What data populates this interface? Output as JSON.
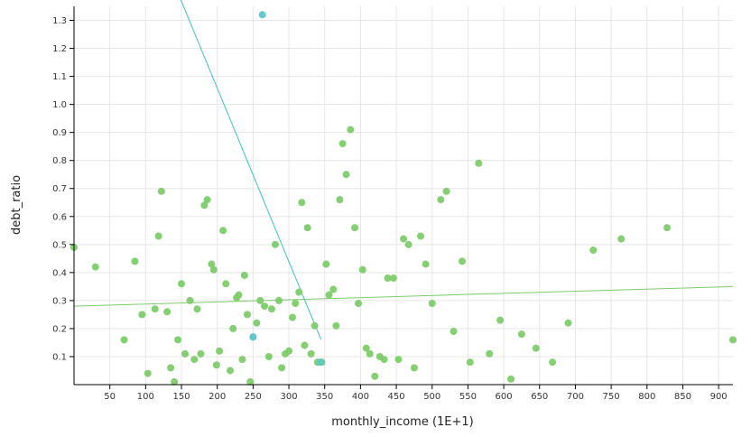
{
  "chart_data": {
    "type": "scatter",
    "xlabel": "monthly_income (1E+1)",
    "ylabel": "debt_ratio",
    "xlim": [
      0,
      920
    ],
    "ylim": [
      0,
      1.35
    ],
    "x_ticks": [
      50,
      100,
      150,
      200,
      250,
      300,
      350,
      400,
      450,
      500,
      550,
      600,
      650,
      700,
      750,
      800,
      850,
      900
    ],
    "y_ticks": [
      0.1,
      0.2,
      0.3,
      0.4,
      0.5,
      0.6,
      0.7,
      0.8,
      0.9,
      1.0,
      1.1,
      1.2,
      1.3
    ],
    "y_tick_labels": [
      "0.1",
      "0.2",
      "0.3",
      "0.4",
      "0.5",
      "0.6",
      "0.7",
      "0.8",
      "0.9",
      "1.0",
      "1.1",
      "1.2",
      "1.3"
    ],
    "grid": true,
    "colors": {
      "green": "#7ccc6a",
      "teal": "#5ec8cc",
      "green_line": "#7ccc6a",
      "teal_line": "#3ec1c8"
    },
    "series": [
      {
        "color": "green",
        "points": [
          [
            0,
            0.49
          ],
          [
            30,
            0.42
          ],
          [
            70,
            0.16
          ],
          [
            85,
            0.44
          ],
          [
            95,
            0.25
          ],
          [
            103,
            0.04
          ],
          [
            113,
            0.27
          ],
          [
            118,
            0.53
          ],
          [
            122,
            0.69
          ],
          [
            130,
            0.26
          ],
          [
            135,
            0.06
          ],
          [
            140,
            0.01
          ],
          [
            145,
            0.16
          ],
          [
            150,
            0.36
          ],
          [
            155,
            0.11
          ],
          [
            162,
            0.3
          ],
          [
            168,
            0.09
          ],
          [
            172,
            0.27
          ],
          [
            177,
            0.11
          ],
          [
            182,
            0.64
          ],
          [
            186,
            0.66
          ],
          [
            192,
            0.43
          ],
          [
            195,
            0.41
          ],
          [
            199,
            0.07
          ],
          [
            203,
            0.12
          ],
          [
            208,
            0.55
          ],
          [
            212,
            0.36
          ],
          [
            218,
            0.05
          ],
          [
            222,
            0.2
          ],
          [
            227,
            0.31
          ],
          [
            230,
            0.32
          ],
          [
            235,
            0.09
          ],
          [
            238,
            0.39
          ],
          [
            242,
            0.25
          ],
          [
            246,
            0.01
          ],
          [
            250,
            0.17
          ],
          [
            255,
            0.22
          ],
          [
            260,
            0.3
          ],
          [
            266,
            0.28
          ],
          [
            272,
            0.1
          ],
          [
            276,
            0.27
          ],
          [
            281,
            0.5
          ],
          [
            286,
            0.3
          ],
          [
            290,
            0.06
          ],
          [
            295,
            0.11
          ],
          [
            300,
            0.12
          ],
          [
            305,
            0.24
          ],
          [
            309,
            0.29
          ],
          [
            314,
            0.33
          ],
          [
            318,
            0.65
          ],
          [
            322,
            0.14
          ],
          [
            326,
            0.56
          ],
          [
            331,
            0.11
          ],
          [
            336,
            0.21
          ],
          [
            340,
            0.08
          ],
          [
            346,
            0.08
          ],
          [
            352,
            0.43
          ],
          [
            356,
            0.32
          ],
          [
            362,
            0.34
          ],
          [
            366,
            0.21
          ],
          [
            371,
            0.66
          ],
          [
            375,
            0.86
          ],
          [
            380,
            0.75
          ],
          [
            386,
            0.91
          ],
          [
            392,
            0.56
          ],
          [
            397,
            0.29
          ],
          [
            403,
            0.41
          ],
          [
            408,
            0.13
          ],
          [
            413,
            0.11
          ],
          [
            420,
            0.03
          ],
          [
            427,
            0.1
          ],
          [
            433,
            0.09
          ],
          [
            438,
            0.38
          ],
          [
            446,
            0.38
          ],
          [
            453,
            0.09
          ],
          [
            460,
            0.52
          ],
          [
            467,
            0.5
          ],
          [
            475,
            0.06
          ],
          [
            484,
            0.53
          ],
          [
            491,
            0.43
          ],
          [
            500,
            0.29
          ],
          [
            512,
            0.66
          ],
          [
            520,
            0.69
          ],
          [
            530,
            0.19
          ],
          [
            542,
            0.44
          ],
          [
            553,
            0.08
          ],
          [
            565,
            0.79
          ],
          [
            580,
            0.11
          ],
          [
            595,
            0.23
          ],
          [
            610,
            0.02
          ],
          [
            625,
            0.18
          ],
          [
            645,
            0.13
          ],
          [
            668,
            0.08
          ],
          [
            690,
            0.22
          ],
          [
            725,
            0.48
          ],
          [
            764,
            0.52
          ],
          [
            828,
            0.56
          ],
          [
            920,
            0.16
          ]
        ]
      },
      {
        "color": "teal",
        "points": [
          [
            263,
            1.32
          ],
          [
            250,
            0.17
          ],
          [
            344,
            0.08
          ]
        ]
      }
    ],
    "trendlines": [
      {
        "color": "green_line",
        "from": [
          0,
          0.28
        ],
        "to": [
          920,
          0.35
        ]
      },
      {
        "color": "teal_line",
        "from": [
          148,
          1.38
        ],
        "to": [
          345,
          0.16
        ]
      }
    ]
  }
}
